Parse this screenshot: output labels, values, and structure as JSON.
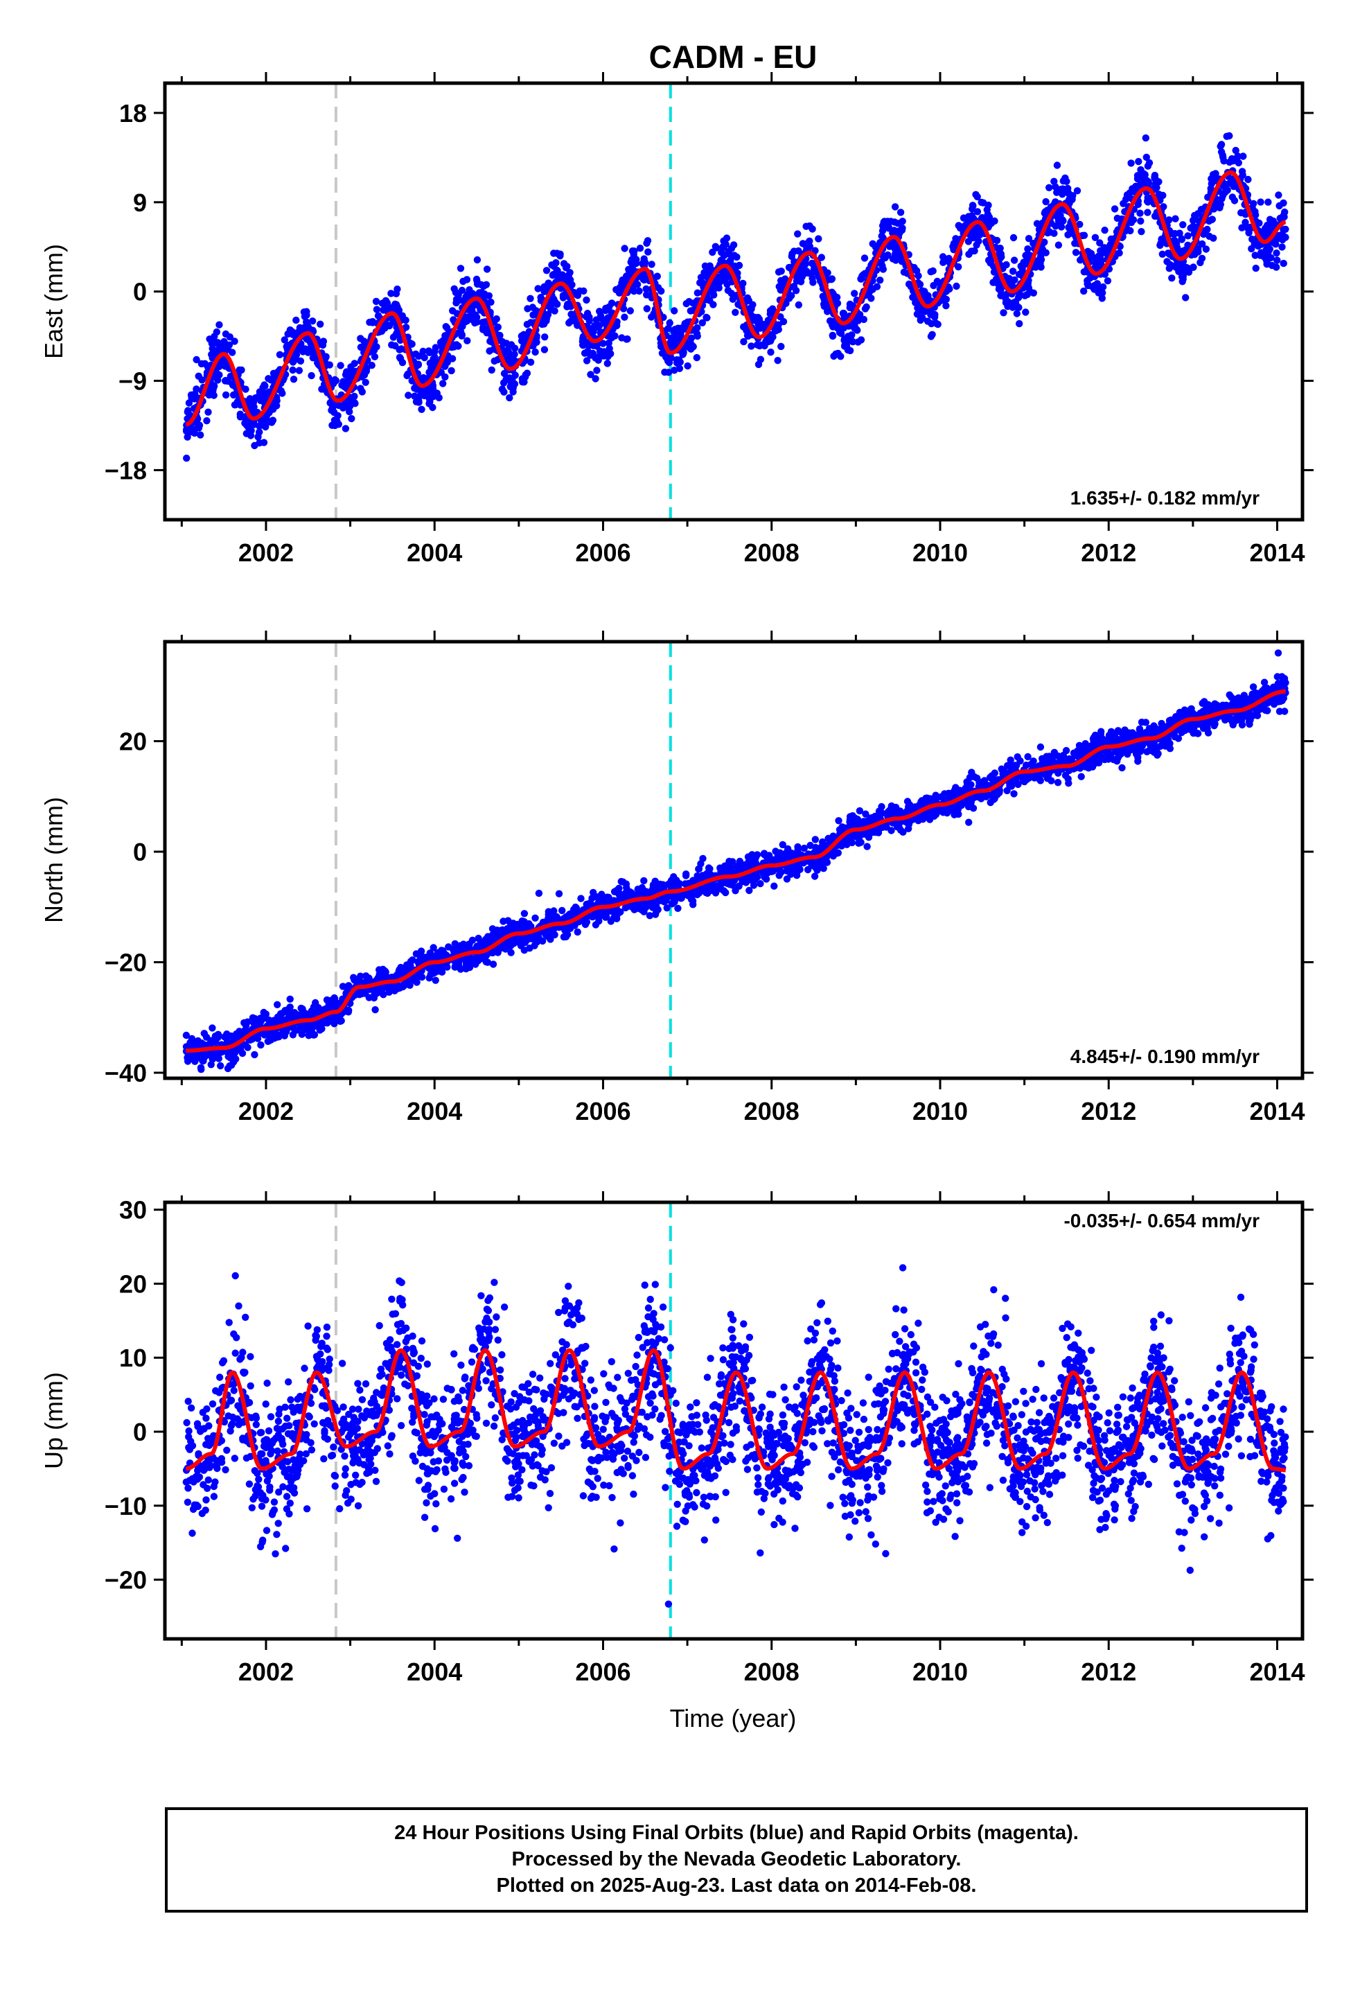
{
  "chart_data": [
    {
      "type": "scatter",
      "title": "CADM - EU",
      "xlabel": "",
      "ylabel": "East (mm)",
      "xlim": [
        2000.8,
        2014.3
      ],
      "ylim": [
        -23,
        21
      ],
      "yticks": [
        18,
        9,
        0,
        -9,
        -18
      ],
      "xticks": [
        2002,
        2004,
        2006,
        2008,
        2010,
        2012,
        2014
      ],
      "rate_label": "1.635+/- 0.182 mm/yr",
      "event_lines": [
        {
          "x": 2002.83,
          "color": "#c8c8c8"
        },
        {
          "x": 2006.8,
          "color": "#00e0e0"
        }
      ],
      "series": [
        {
          "color": "#0000ff",
          "points": {
            "x_start": 2001.05,
            "x_end": 2014.1,
            "annual_amplitude": 4.0,
            "trend": 1.635,
            "noise": 1.5
          }
        },
        {
          "color": "#ff0000",
          "x": [
            2001.05,
            2001.5,
            2001.85,
            2002.5,
            2002.85,
            2003.5,
            2003.85,
            2004.5,
            2004.9,
            2005.5,
            2005.9,
            2006.5,
            2006.8,
            2007.45,
            2007.85,
            2008.45,
            2008.85,
            2009.45,
            2009.85,
            2010.45,
            2010.85,
            2011.45,
            2011.85,
            2012.45,
            2012.85,
            2013.45,
            2013.85,
            2014.1
          ],
          "y": [
            -13.4,
            -6.3,
            -12.8,
            -4.2,
            -11.0,
            -2.2,
            -9.5,
            -0.7,
            -7.8,
            0.8,
            -5.0,
            2.3,
            -6.2,
            2.6,
            -4.6,
            3.9,
            -3.2,
            5.5,
            -1.5,
            7.0,
            0.0,
            8.8,
            1.8,
            10.4,
            3.3,
            12.0,
            5.0,
            7.0
          ]
        }
      ]
    },
    {
      "type": "scatter",
      "xlabel": "",
      "ylabel": "North (mm)",
      "xlim": [
        2000.8,
        2014.3
      ],
      "ylim": [
        -41,
        38
      ],
      "yticks": [
        20,
        0,
        -20,
        -40
      ],
      "xticks": [
        2002,
        2004,
        2006,
        2008,
        2010,
        2012,
        2014
      ],
      "rate_label": "4.845+/- 0.190 mm/yr",
      "event_lines": [
        {
          "x": 2002.83,
          "color": "#c8c8c8"
        },
        {
          "x": 2006.8,
          "color": "#00e0e0"
        }
      ],
      "series": [
        {
          "color": "#0000ff",
          "points": {
            "x_start": 2001.05,
            "x_end": 2014.1,
            "annual_amplitude": 0.8,
            "trend": 4.845,
            "noise": 1.3
          }
        },
        {
          "color": "#ff0000",
          "x": [
            2001.05,
            2001.5,
            2002.0,
            2002.5,
            2002.83,
            2003.1,
            2003.5,
            2004.0,
            2004.5,
            2005.0,
            2005.5,
            2006.0,
            2006.5,
            2006.8,
            2007.5,
            2008.0,
            2008.5,
            2009.0,
            2009.5,
            2010.0,
            2010.5,
            2011.0,
            2011.5,
            2012.0,
            2012.5,
            2013.0,
            2013.5,
            2014.1
          ],
          "y": [
            -36.0,
            -35.5,
            -32.0,
            -30.5,
            -29.0,
            -24.5,
            -23.5,
            -20.0,
            -18.2,
            -14.8,
            -13.0,
            -10.0,
            -8.5,
            -7.2,
            -4.5,
            -2.5,
            -1.0,
            4.0,
            6.0,
            8.5,
            11.0,
            14.5,
            15.5,
            19.0,
            20.5,
            24.0,
            25.5,
            29.0
          ]
        }
      ]
    },
    {
      "type": "scatter",
      "xlabel": "Time (year)",
      "ylabel": "Up (mm)",
      "xlim": [
        2000.8,
        2014.3
      ],
      "ylim": [
        -28,
        31
      ],
      "yticks": [
        30,
        20,
        10,
        0,
        -10,
        -20
      ],
      "xticks": [
        2002,
        2004,
        2006,
        2008,
        2010,
        2012,
        2014
      ],
      "rate_label": "-0.035+/- 0.654 mm/yr",
      "event_lines": [
        {
          "x": 2002.83,
          "color": "#c8c8c8"
        },
        {
          "x": 2006.8,
          "color": "#00e0e0"
        }
      ],
      "series": [
        {
          "color": "#0000ff",
          "points": {
            "x_start": 2001.05,
            "x_end": 2014.1,
            "annual_amplitude": 6.5,
            "trend": -0.035,
            "noise": 4.5
          }
        },
        {
          "color": "#ff0000",
          "x": [
            2001.05,
            2001.35,
            2001.6,
            2001.95,
            2002.3,
            2002.6,
            2002.95,
            2003.3,
            2003.6,
            2003.95,
            2004.3,
            2004.6,
            2004.95,
            2005.3,
            2005.6,
            2005.95,
            2006.3,
            2006.6,
            2006.95,
            2007.25,
            2007.58,
            2007.95,
            2008.25,
            2008.58,
            2008.95,
            2009.25,
            2009.58,
            2009.95,
            2010.25,
            2010.58,
            2010.95,
            2011.25,
            2011.58,
            2011.95,
            2012.25,
            2012.58,
            2012.95,
            2013.25,
            2013.58,
            2013.95,
            2014.1
          ],
          "y": [
            -5.0,
            -3.0,
            8.0,
            -5.0,
            -3.0,
            8.0,
            -2.0,
            0.0,
            11.0,
            -2.0,
            0.0,
            11.0,
            -2.0,
            0.0,
            11.0,
            -2.0,
            0.0,
            11.0,
            -5.0,
            -3.0,
            8.0,
            -5.0,
            -3.0,
            8.0,
            -5.0,
            -3.0,
            8.0,
            -5.0,
            -3.0,
            8.0,
            -5.0,
            -3.0,
            8.0,
            -5.0,
            -3.0,
            8.0,
            -5.0,
            -3.0,
            8.0,
            -5.0,
            -5.2
          ]
        }
      ]
    }
  ],
  "footer": {
    "line1": "24 Hour Positions Using Final Orbits (blue) and Rapid Orbits (magenta).",
    "line2": "Processed by the Nevada Geodetic Laboratory.",
    "line3": "Plotted on 2025-Aug-23. Last data on 2014-Feb-08."
  }
}
